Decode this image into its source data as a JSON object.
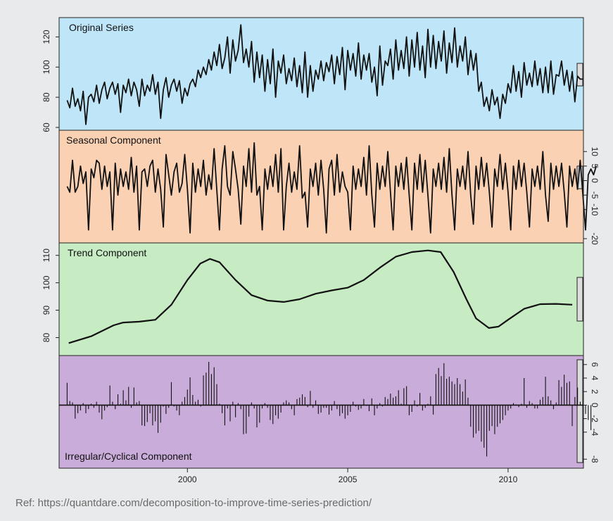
{
  "caption": "Ref: https://quantdare.com/decomposition-to-improve-time-series-prediction/",
  "chart_data": [
    {
      "type": "line",
      "title": "Original Series",
      "background": "#bfe6f8",
      "ylim": [
        60,
        130
      ],
      "yticks": [
        "60",
        "80",
        "100",
        "120"
      ],
      "x_start": 1996.25,
      "x_step": 0.0833333,
      "values": [
        78,
        73,
        86,
        74,
        79,
        71,
        84,
        62,
        80,
        82,
        77,
        88,
        76,
        85,
        90,
        79,
        86,
        90,
        82,
        89,
        70,
        88,
        83,
        92,
        81,
        90,
        85,
        74,
        92,
        81,
        88,
        84,
        95,
        82,
        90,
        66,
        85,
        93,
        80,
        88,
        92,
        84,
        91,
        76,
        86,
        81,
        89,
        92,
        87,
        98,
        93,
        100,
        95,
        105,
        98,
        110,
        101,
        115,
        99,
        106,
        120,
        96,
        118,
        104,
        111,
        128,
        103,
        112,
        100,
        117,
        90,
        110,
        93,
        108,
        84,
        105,
        89,
        112,
        80,
        104,
        96,
        108,
        89,
        99,
        91,
        106,
        87,
        101,
        83,
        110,
        80,
        101,
        84,
        98,
        92,
        104,
        91,
        103,
        97,
        108,
        89,
        107,
        95,
        113,
        85,
        111,
        98,
        109,
        94,
        116,
        92,
        108,
        98,
        109,
        90,
        100,
        81,
        114,
        88,
        104,
        101,
        112,
        92,
        118,
        98,
        111,
        99,
        120,
        94,
        118,
        100,
        123,
        98,
        114,
        93,
        125,
        100,
        121,
        99,
        117,
        104,
        124,
        96,
        116,
        103,
        126,
        100,
        114,
        104,
        120,
        95,
        111,
        98,
        109,
        84,
        90,
        74,
        80,
        71,
        85,
        75,
        80,
        66,
        82,
        76,
        89,
        83,
        101,
        84,
        97,
        80,
        103,
        88,
        96,
        87,
        104,
        88,
        99,
        83,
        100,
        83,
        104,
        82,
        95,
        94,
        104,
        88,
        98,
        84,
        97,
        77,
        94,
        92,
        92
      ]
    },
    {
      "type": "line",
      "title": "Seasonal Component",
      "background": "#fbd1b4",
      "ylim": [
        -20,
        12
      ],
      "yticks": [
        "-20",
        "-10",
        "-5",
        "0",
        "5",
        "10"
      ],
      "x_start": 1996.25,
      "x_step": 0.0833333,
      "values": [
        -2,
        -4,
        7,
        -4,
        -2,
        5,
        -1,
        3,
        -17,
        4,
        1,
        7,
        6,
        -3,
        5,
        -2,
        3,
        -17,
        6,
        -5,
        4,
        -2,
        3,
        -3,
        8,
        -4,
        5,
        -17,
        3,
        4,
        -2,
        5,
        7,
        -4,
        4,
        -3,
        -16,
        9,
        2,
        -5,
        3,
        6,
        -4,
        -1,
        9,
        -3,
        -18,
        6,
        -4,
        4,
        -2,
        7,
        -5,
        2,
        -3,
        11,
        -3,
        -17,
        4,
        12,
        -2,
        -5,
        10,
        4,
        -3,
        -15,
        5,
        -2,
        11,
        -4,
        13,
        -5,
        -2,
        -17,
        4,
        -3,
        5,
        -2,
        9,
        -4,
        11,
        -17,
        -2,
        6,
        -4,
        3,
        -3,
        12,
        -6,
        -4,
        -16,
        4,
        -2,
        6,
        -5,
        7,
        -3,
        -18,
        4,
        7,
        -5,
        9,
        -4,
        3,
        -2,
        -4,
        -17,
        5,
        -3,
        4,
        -2,
        8,
        -5,
        12,
        -5,
        -16,
        6,
        -3,
        5,
        -2,
        10,
        -4,
        -17,
        5,
        -2,
        6,
        -3,
        8,
        -5,
        -17,
        6,
        -3,
        9,
        -4,
        7,
        -5,
        -18,
        4,
        -2,
        6,
        -3,
        8,
        -4,
        11,
        -5,
        -17,
        4,
        -2,
        5,
        -3,
        10,
        -5,
        -15,
        5,
        -3,
        8,
        -2,
        6,
        -4,
        -16,
        4,
        -2,
        9,
        -3,
        6,
        -4,
        -17,
        5,
        -3,
        7,
        -2,
        6,
        -4,
        -16,
        4,
        -2,
        5,
        -3,
        10,
        -5,
        -14,
        6,
        -3,
        5,
        -2,
        6,
        -4,
        -16,
        5,
        -2,
        4,
        -3,
        7,
        -5,
        -17,
        2,
        4,
        2,
        5
      ]
    },
    {
      "type": "line",
      "title": "Trend Component",
      "background": "#c7ebc3",
      "ylim": [
        75,
        113
      ],
      "yticks": [
        "80",
        "90",
        "100",
        "110"
      ],
      "x": [
        1996.3,
        1997.0,
        1997.7,
        1998.0,
        1998.5,
        1999.0,
        1999.5,
        2000.0,
        2000.4,
        2000.7,
        2001.0,
        2001.5,
        2002.0,
        2002.5,
        2003.0,
        2003.5,
        2004.0,
        2004.5,
        2005.0,
        2005.5,
        2006.0,
        2006.5,
        2007.0,
        2007.5,
        2007.9,
        2008.3,
        2008.7,
        2009.0,
        2009.4,
        2009.7,
        2010.0,
        2010.5,
        2011.0,
        2011.5,
        2012.0
      ],
      "values": [
        78,
        80.5,
        84.5,
        85.5,
        85.8,
        86.5,
        92,
        101,
        107,
        108.7,
        107.5,
        101,
        95.5,
        93.5,
        93,
        94,
        96,
        97.2,
        98.2,
        101,
        105.5,
        109.5,
        111.2,
        111.8,
        111.2,
        104,
        94,
        87,
        83.5,
        84,
        86.5,
        90.5,
        92.2,
        92.3,
        92
      ]
    },
    {
      "type": "bar",
      "title": "Irregular/Cyclical Component",
      "background": "#c9acd9",
      "ylim": [
        -8.5,
        6.5
      ],
      "yticks": [
        "-8",
        "-4",
        "-2",
        "0",
        "2",
        "4",
        "6"
      ],
      "xticks": [
        "2000",
        "2005",
        "2010"
      ],
      "x_start": 1996.25,
      "x_step": 0.0833333,
      "values": [
        3.3,
        0.6,
        0.4,
        -2,
        -1.2,
        -0.8,
        0.3,
        -1.2,
        -0.6,
        0.2,
        -0.4,
        0.5,
        -1.1,
        -2.1,
        -0.8,
        -0.3,
        2.9,
        0.5,
        -0.6,
        1.6,
        0.2,
        2.2,
        0.7,
        2.7,
        -0.4,
        2.6,
        0.4,
        0.6,
        -3,
        -3.1,
        -2.5,
        -1.2,
        -3,
        -2.4,
        -4.1,
        -2.6,
        -0.2,
        -1.3,
        -0.4,
        3.4,
        -0.2,
        -0.8,
        -1.5,
        0.5,
        1.2,
        2.3,
        4.1,
        1.5,
        0.5,
        0.8,
        -0.2,
        4.4,
        4.8,
        6.4,
        4.6,
        5.6,
        3.1,
        0.2,
        -1.2,
        -3,
        -0.5,
        -2.4,
        0.5,
        -1.8,
        0.3,
        -0.6,
        -4.3,
        -4.2,
        -1.7,
        0.4,
        -0.5,
        -3.3,
        -2.6,
        -0.5,
        0.3,
        -0.4,
        -2.2,
        -2.8,
        -1.5,
        -2,
        -1.1,
        0.4,
        0.7,
        0.4,
        -0.6,
        -1.5,
        0.9,
        1.1,
        1.6,
        1.2,
        -0.3,
        2.1,
        -0.4,
        0.7,
        -1.3,
        -1.1,
        -0.4,
        -0.4,
        -1.4,
        -0.8,
        0.6,
        -0.6,
        -1.6,
        -1.2,
        -2,
        -1.5,
        -1,
        0.5,
        -0.2,
        -0.7,
        -0.5,
        0.9,
        -0.1,
        -0.9,
        1,
        -1.5,
        -0.5,
        0.3,
        -0.2,
        1.2,
        0.9,
        1.7,
        1.1,
        1.3,
        2.2,
        0.2,
        2.5,
        2.8,
        -1.5,
        -1,
        0.7,
        -0.2,
        1.8,
        -0.8,
        -0.4,
        0.2,
        1.3,
        -1.4,
        4.6,
        5.5,
        4.3,
        6.2,
        3.9,
        4.2,
        3.5,
        3.1,
        4,
        3.1,
        2,
        3.8,
        1.1,
        -3.2,
        -4.8,
        -4.2,
        -3.8,
        -5.4,
        -6.3,
        -7.6,
        -3.8,
        -3.1,
        -4.3,
        -3.2,
        -2.7,
        -2.2,
        -1.5,
        -0.8,
        -0.5,
        0.3,
        0.1,
        -0.3,
        0.2,
        4,
        -0.4,
        0.6,
        0.3,
        -0.5,
        -0.5,
        0.8,
        1.2,
        4.2,
        1.3,
        0.7,
        -0.6,
        0.4,
        3.7,
        2.7,
        4.5,
        3.3,
        3.5,
        -3.1,
        1.2,
        2.6,
        0.5,
        -0.2,
        -1.3,
        -2.2,
        -3.7
      ]
    }
  ]
}
